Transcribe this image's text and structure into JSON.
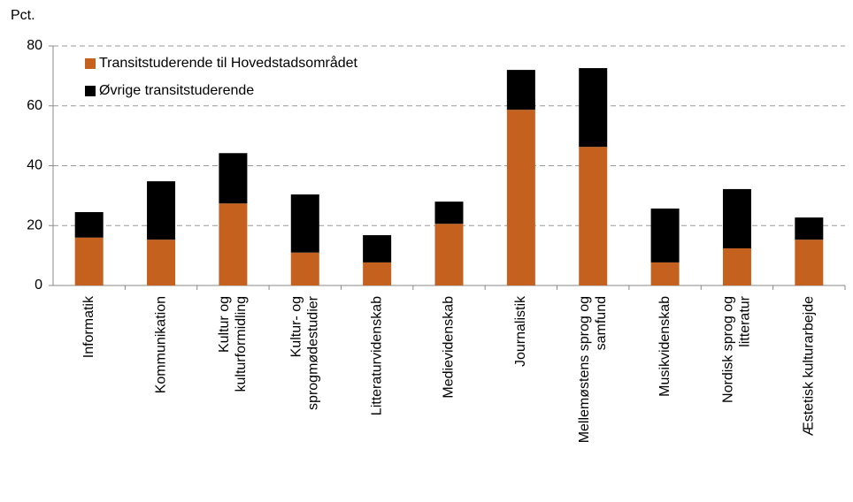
{
  "chart_data": {
    "type": "stacked_bar",
    "y_label": "Pct.",
    "categories": [
      [
        "Informatik"
      ],
      [
        "Kommunikation"
      ],
      [
        "Kultur og",
        "kulturformidling"
      ],
      [
        "Kultur- og",
        "sprogmødestudier"
      ],
      [
        "Litteraturvidenskab"
      ],
      [
        "Medievidenskab"
      ],
      [
        "Journalistik"
      ],
      [
        "Mellemøstens sprog og",
        "samfund"
      ],
      [
        "Musikvidenskab"
      ],
      [
        "Nordisk sprog og",
        "litteratur"
      ],
      [
        "Æstetisk kulturarbejde"
      ]
    ],
    "series": [
      {
        "name": "Transitstuderende til Hovedstadsområdet",
        "color": "#c5611f",
        "values": [
          16,
          15.3,
          27.4,
          11,
          7.7,
          20.6,
          58.7,
          46.3,
          7.7,
          12.4,
          15.3
        ]
      },
      {
        "name": "Øvrige transitstuderende",
        "color": "#000000",
        "values": [
          8.5,
          19.5,
          16.8,
          19.4,
          9.1,
          7.4,
          13.3,
          26.3,
          18,
          19.8,
          7.4
        ]
      }
    ],
    "ylim": [
      0,
      80
    ],
    "yticks": [
      0,
      20,
      40,
      60,
      80
    ],
    "grid": true,
    "legend": "top-left"
  }
}
